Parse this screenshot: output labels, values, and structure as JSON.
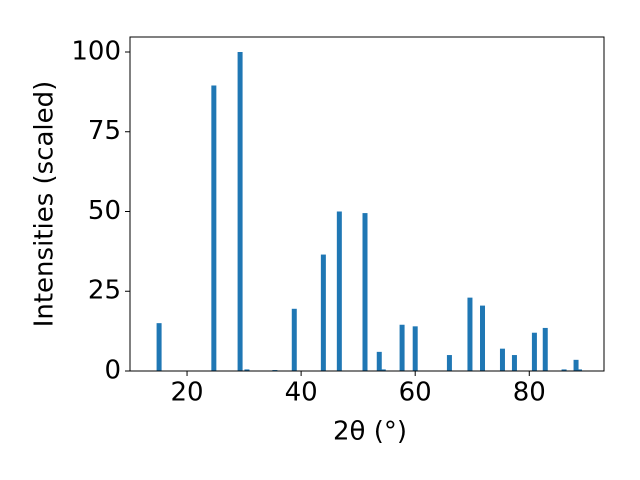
{
  "chart_data": {
    "type": "bar",
    "xlabel": "2θ (°)",
    "ylabel": "Intensities (scaled)",
    "x": [
      15.1,
      24.7,
      29.3,
      30.5,
      35.4,
      38.8,
      43.9,
      46.7,
      51.2,
      53.7,
      54.4,
      57.7,
      60.0,
      66.0,
      69.6,
      71.8,
      75.3,
      77.4,
      80.9,
      82.8,
      86.1,
      88.2,
      88.8
    ],
    "values": [
      15,
      89.5,
      100,
      0.5,
      0.3,
      19.5,
      36.5,
      50,
      49.5,
      6,
      0.5,
      14.5,
      14,
      5,
      23,
      20.5,
      7,
      5,
      12,
      13.5,
      0.5,
      3.5,
      0.5
    ],
    "color": "#1f77b4",
    "xlim": [
      10,
      93.1
    ],
    "ylim": [
      0,
      104.7
    ],
    "xticks": [
      20,
      40,
      60,
      80
    ],
    "yticks": [
      0,
      25,
      50,
      75,
      100
    ]
  }
}
